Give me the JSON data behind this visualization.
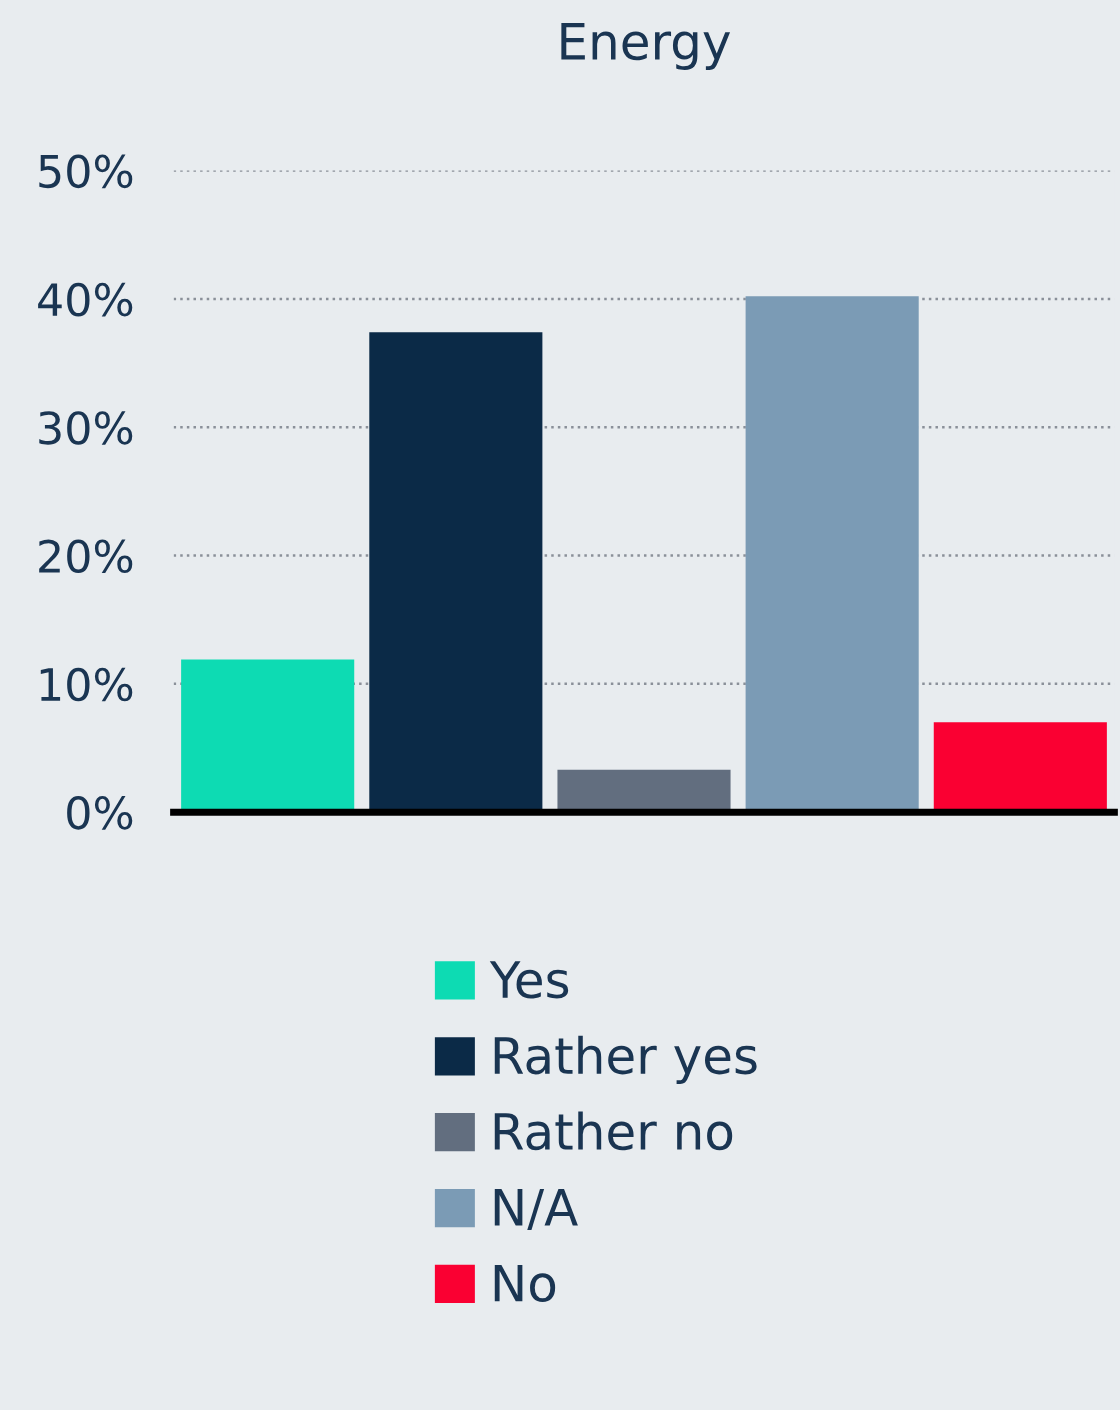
{
  "chart_data": {
    "type": "bar",
    "title": "Energy",
    "categories": [
      null,
      null,
      null,
      null,
      null
    ],
    "series": [
      {
        "name": "Yes",
        "color": "#0ddbb3",
        "values": [
          11.9,
          null,
          null,
          null,
          null
        ]
      },
      {
        "name": "Rather yes",
        "color": "#0b2a47",
        "values": [
          null,
          37.4,
          null,
          null,
          null
        ]
      },
      {
        "name": "Rather no",
        "color": "#626e7f",
        "values": [
          null,
          null,
          3.3,
          null,
          null
        ]
      },
      {
        "name": "N/A",
        "color": "#7b9bb5",
        "values": [
          null,
          null,
          null,
          40.2,
          null
        ]
      },
      {
        "name": "No",
        "color": "#fa0032",
        "values": [
          null,
          null,
          null,
          null,
          7.0
        ]
      }
    ],
    "ylim": [
      0,
      50
    ],
    "yticks": [
      {
        "value": 0,
        "label": "0%"
      },
      {
        "value": 10,
        "label": "10%"
      },
      {
        "value": 20,
        "label": "20%"
      },
      {
        "value": 30,
        "label": "30%"
      },
      {
        "value": 40,
        "label": "40%"
      },
      {
        "value": 50,
        "label": "50%"
      }
    ],
    "grid": "y",
    "legend": "bottom"
  }
}
